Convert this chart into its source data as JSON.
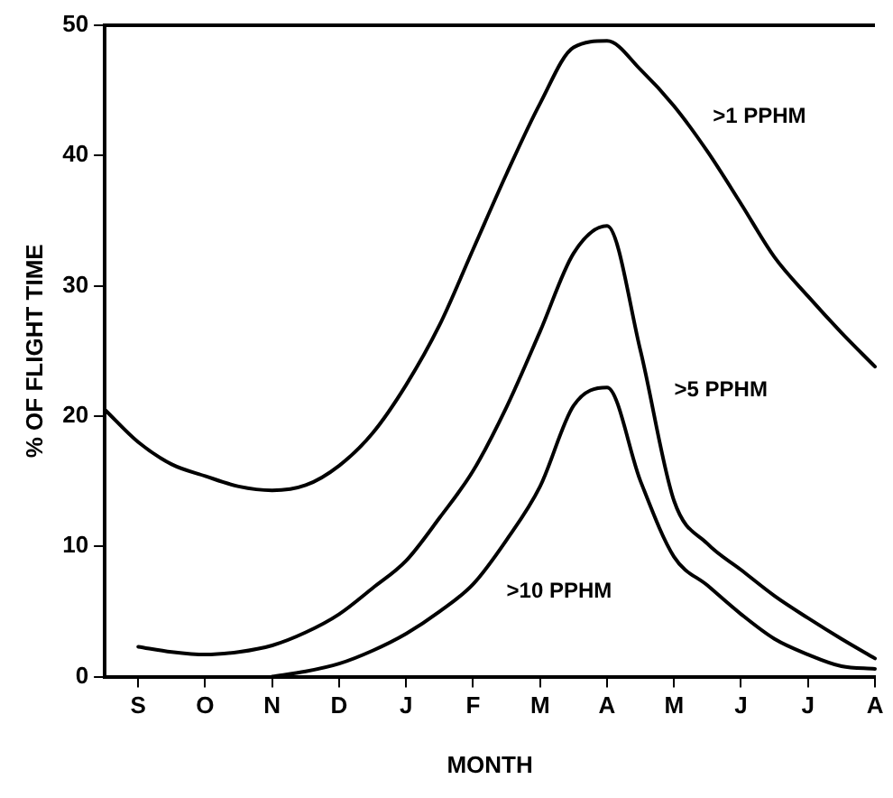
{
  "chart_data": {
    "type": "line",
    "xlabel": "MONTH",
    "ylabel": "% OF FLIGHT TIME",
    "categories": [
      null,
      "S",
      null,
      "O",
      null,
      "N",
      null,
      "D",
      null,
      "J",
      null,
      "F",
      null,
      "M",
      null,
      "A",
      null,
      "M",
      null,
      "J",
      null,
      "J",
      null,
      "A"
    ],
    "ylim": [
      0,
      50
    ],
    "yticks": [
      0,
      10,
      20,
      30,
      40,
      50
    ],
    "grid": false,
    "legend": false,
    "marker": "none",
    "line_style": "solid",
    "series": [
      {
        "color": "#000000",
        "values": [
          20.5,
          18.0,
          16.3,
          15.4,
          14.6,
          14.3,
          14.7,
          16.2,
          18.7,
          22.4,
          27.0,
          32.8,
          38.6,
          44.0,
          48.3,
          48.8,
          46.6,
          43.8,
          40.3,
          36.3,
          32.2,
          29.2,
          26.4,
          23.8
        ]
      },
      {
        "color": "#000000",
        "values": [
          null,
          2.3,
          1.9,
          1.7,
          1.9,
          2.4,
          3.4,
          4.8,
          6.8,
          8.9,
          12.2,
          15.8,
          20.7,
          26.5,
          32.5,
          34.6,
          25.0,
          13.5,
          10.2,
          8.2,
          6.2,
          4.5,
          2.9,
          1.4
        ]
      },
      {
        "color": "#000000",
        "values": [
          null,
          null,
          null,
          null,
          null,
          0,
          0.4,
          1.0,
          2.0,
          3.3,
          5.0,
          7.1,
          10.5,
          14.6,
          20.8,
          22.2,
          15.0,
          9.2,
          7.0,
          4.8,
          2.9,
          1.7,
          0.8,
          0.6
        ]
      }
    ],
    "annotations": [
      ">1 PPHM",
      ">5 PPHM",
      ">10 PPHM"
    ]
  }
}
